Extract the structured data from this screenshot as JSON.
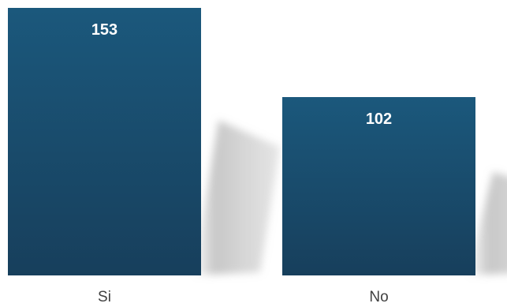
{
  "chart_data": {
    "type": "bar",
    "categories": [
      "Si",
      "No"
    ],
    "values": [
      153,
      102
    ],
    "title": "",
    "xlabel": "",
    "ylabel": "",
    "ylim": [
      0,
      153
    ],
    "grid": false,
    "legend": "none",
    "bar_color_top": "#1b587c",
    "bar_color_bottom": "#173f5c",
    "value_label_color": "#ffffff",
    "tick_label_color": "#404040"
  }
}
